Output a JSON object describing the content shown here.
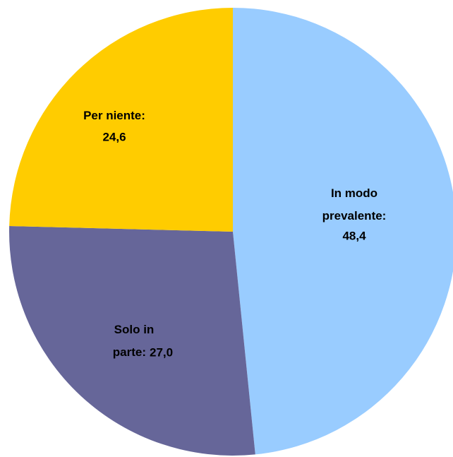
{
  "chart_data": {
    "type": "pie",
    "categories": [
      "In modo prevalente:",
      "Solo in parte:",
      "Per niente:"
    ],
    "values": [
      48.4,
      27.0,
      24.6
    ],
    "value_labels": [
      "48,4",
      "27,0",
      "24,6"
    ],
    "colors": [
      "#99ccff",
      "#666699",
      "#ffcc00"
    ]
  }
}
